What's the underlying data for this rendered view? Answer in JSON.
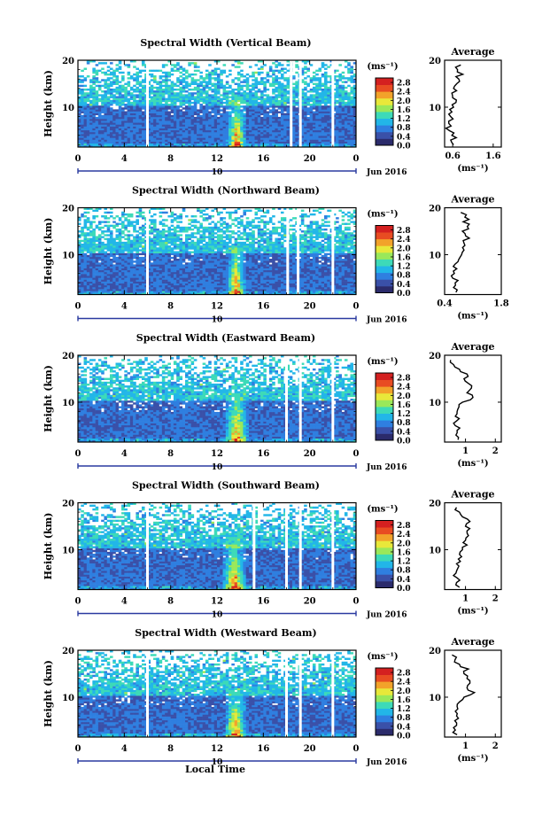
{
  "figure": {
    "x_axis_label": "Local Time",
    "date_label": "Jun 2016",
    "day_label": "10",
    "height_axis_label": "Height (km)",
    "colorbar_unit": "(ms⁻¹)",
    "average_title": "Average",
    "average_unit": "(ms⁻¹)"
  },
  "colors": {
    "colormap": [
      "#2b2b6b",
      "#3a50a8",
      "#2f7fe0",
      "#22b6e8",
      "#3ddab8",
      "#9ae85a",
      "#e8e83a",
      "#f2a22a",
      "#e84c22",
      "#d42020"
    ],
    "missing": "#ffffff"
  },
  "chart_data": [
    {
      "type": "heatmap",
      "title": "Spectral Width (Vertical Beam)",
      "x_ticks": [
        "0",
        "4",
        "8",
        "12",
        "16",
        "20",
        "0"
      ],
      "x_range_hours": [
        0,
        24
      ],
      "y_ticks": [
        "20",
        "10"
      ],
      "y_range_km": [
        1.5,
        20
      ],
      "colorbar_ticks": [
        "2.8",
        "2.4",
        "2.0",
        "1.6",
        "1.2",
        "0.8",
        "0.4",
        "0.0"
      ],
      "colorbar_range": [
        0.0,
        3.0
      ],
      "data_gaps_hours": [
        6.0,
        18.4,
        19.2,
        22.0
      ],
      "enhanced_region": {
        "start_hour": 12.8,
        "end_hour": 14.6,
        "max_value": 2.8
      },
      "average_profile": {
        "title": "Average",
        "x_ticks": [
          "0.6",
          "1.6"
        ],
        "x_range": [
          0.4,
          1.8
        ],
        "y_ticks": [
          "20",
          "10"
        ],
        "height_km": [
          2,
          3,
          4,
          5,
          6,
          7,
          8,
          9,
          10,
          11,
          12,
          13,
          14,
          15,
          16,
          17,
          18,
          19
        ],
        "width": [
          0.62,
          0.55,
          0.58,
          0.52,
          0.56,
          0.5,
          0.55,
          0.58,
          0.62,
          0.68,
          0.6,
          0.58,
          0.62,
          0.7,
          0.75,
          0.85,
          0.72,
          0.8
        ]
      }
    },
    {
      "type": "heatmap",
      "title": "Spectral Width (Northward Beam)",
      "x_ticks": [
        "0",
        "4",
        "8",
        "12",
        "16",
        "20",
        "0"
      ],
      "x_range_hours": [
        0,
        24
      ],
      "y_ticks": [
        "20",
        "10"
      ],
      "y_range_km": [
        1.5,
        20
      ],
      "colorbar_ticks": [
        "2.8",
        "2.4",
        "2.0",
        "1.6",
        "1.2",
        "0.8",
        "0.4",
        "0.0"
      ],
      "colorbar_range": [
        0.0,
        3.0
      ],
      "data_gaps_hours": [
        6.0,
        18.1,
        19.0,
        22.0
      ],
      "enhanced_region": {
        "start_hour": 12.8,
        "end_hour": 14.5,
        "max_value": 2.8
      },
      "average_profile": {
        "title": "Average",
        "x_ticks": [
          "0.4",
          "1.8"
        ],
        "x_range": [
          0.4,
          1.8
        ],
        "y_ticks": [
          "20",
          "10"
        ],
        "height_km": [
          2,
          3,
          4,
          5,
          6,
          7,
          8,
          9,
          10,
          11,
          12,
          13,
          14,
          15,
          16,
          17,
          18,
          19
        ],
        "width": [
          0.68,
          0.62,
          0.66,
          0.6,
          0.64,
          0.7,
          0.66,
          0.75,
          0.82,
          0.88,
          0.9,
          0.86,
          0.92,
          0.84,
          0.96,
          0.86,
          0.9,
          0.8
        ]
      }
    },
    {
      "type": "heatmap",
      "title": "Spectral Width (Eastward Beam)",
      "x_ticks": [
        "0",
        "4",
        "8",
        "12",
        "16",
        "20",
        "0"
      ],
      "x_range_hours": [
        0,
        24
      ],
      "y_ticks": [
        "20",
        "10"
      ],
      "y_range_km": [
        1.5,
        20
      ],
      "colorbar_ticks": [
        "2.8",
        "2.4",
        "2.0",
        "1.6",
        "1.2",
        "0.8",
        "0.4",
        "0.0"
      ],
      "colorbar_range": [
        0.0,
        3.0
      ],
      "data_gaps_hours": [
        18.0,
        19.2,
        22.0
      ],
      "enhanced_region": {
        "start_hour": 12.6,
        "end_hour": 14.8,
        "max_value": 2.8
      },
      "average_profile": {
        "title": "Average",
        "x_ticks": [
          "1",
          "2"
        ],
        "x_range": [
          0.3,
          2.2
        ],
        "y_ticks": [
          "20",
          "10"
        ],
        "height_km": [
          2,
          3,
          4,
          5,
          6,
          7,
          8,
          9,
          10,
          11,
          12,
          13,
          14,
          15,
          16,
          17,
          18,
          19
        ],
        "width": [
          0.75,
          0.68,
          0.72,
          0.66,
          0.7,
          0.66,
          0.72,
          0.78,
          0.9,
          1.25,
          1.05,
          1.2,
          1.1,
          0.95,
          1.05,
          0.8,
          0.6,
          0.5
        ]
      }
    },
    {
      "type": "heatmap",
      "title": "Spectral Width (Southward Beam)",
      "x_ticks": [
        "0",
        "4",
        "8",
        "12",
        "16",
        "20",
        "0"
      ],
      "x_range_hours": [
        0,
        24
      ],
      "y_ticks": [
        "20",
        "10"
      ],
      "y_range_km": [
        1.5,
        20
      ],
      "colorbar_ticks": [
        "2.8",
        "2.4",
        "2.0",
        "1.6",
        "1.2",
        "0.8",
        "0.4",
        "0.0"
      ],
      "colorbar_range": [
        0.0,
        3.0
      ],
      "data_gaps_hours": [
        6.0,
        15.2,
        18.0,
        19.2,
        22.0
      ],
      "enhanced_region": {
        "start_hour": 12.4,
        "end_hour": 14.6,
        "max_value": 2.8
      },
      "average_profile": {
        "title": "Average",
        "x_ticks": [
          "1",
          "2"
        ],
        "x_range": [
          0.3,
          2.2
        ],
        "y_ticks": [
          "20",
          "10"
        ],
        "height_km": [
          2,
          3,
          4,
          5,
          6,
          7,
          8,
          9,
          10,
          11,
          12,
          13,
          14,
          15,
          16,
          17,
          18,
          19
        ],
        "width": [
          0.8,
          0.7,
          0.72,
          0.68,
          0.74,
          0.7,
          0.76,
          0.8,
          0.9,
          1.05,
          1.0,
          1.1,
          1.05,
          1.0,
          1.15,
          0.9,
          0.8,
          0.7
        ]
      }
    },
    {
      "type": "heatmap",
      "title": "Spectral Width (Westward Beam)",
      "x_ticks": [
        "0",
        "4",
        "8",
        "12",
        "16",
        "20",
        "0"
      ],
      "x_range_hours": [
        0,
        24
      ],
      "y_ticks": [
        "20",
        "10"
      ],
      "y_range_km": [
        1.5,
        20
      ],
      "colorbar_ticks": [
        "2.8",
        "2.4",
        "2.0",
        "1.6",
        "1.2",
        "0.8",
        "0.4",
        "0.0"
      ],
      "colorbar_range": [
        0.0,
        3.0
      ],
      "data_gaps_hours": [
        6.0,
        18.0,
        19.2,
        22.0
      ],
      "enhanced_region": {
        "start_hour": 12.6,
        "end_hour": 14.6,
        "max_value": 2.8
      },
      "average_profile": {
        "title": "Average",
        "x_ticks": [
          "1",
          "2"
        ],
        "x_range": [
          0.3,
          2.2
        ],
        "y_ticks": [
          "20",
          "10"
        ],
        "height_km": [
          2,
          3,
          4,
          5,
          6,
          7,
          8,
          9,
          10,
          11,
          12,
          13,
          14,
          15,
          16,
          17,
          18,
          19
        ],
        "width": [
          0.72,
          0.66,
          0.7,
          0.64,
          0.7,
          0.66,
          0.72,
          0.8,
          0.95,
          1.3,
          1.05,
          1.15,
          1.05,
          0.95,
          1.1,
          0.8,
          0.65,
          0.55
        ]
      }
    }
  ]
}
